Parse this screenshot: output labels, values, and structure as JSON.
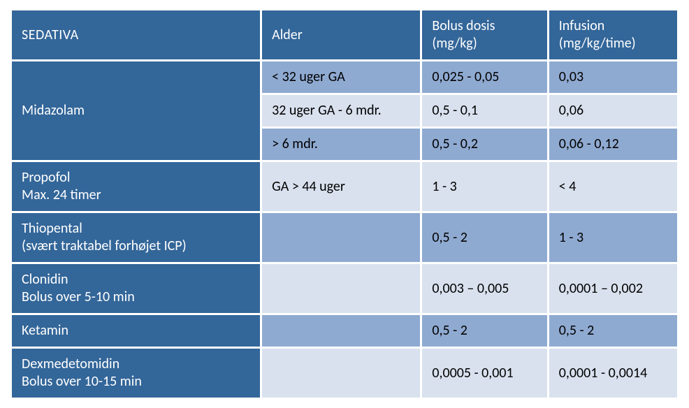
{
  "table": {
    "type": "table",
    "colors": {
      "header_bg": "#336699",
      "header_fg": "#ffffff",
      "drug_bg": "#336699",
      "drug_fg": "#ffffff",
      "row_med": "#8faad1",
      "row_light": "#d9e1ee",
      "border": "#ffffff",
      "cell_fg": "#000000"
    },
    "font_size_pt": 15,
    "col_widths_pct": [
      37.5,
      24,
      19,
      19.5
    ],
    "header": {
      "c1": "SEDATIVA",
      "c2": "Alder",
      "c3": "Bolus dosis\n(mg/kg)",
      "c4": "Infusion\n(mg/kg/time)"
    },
    "rows": [
      {
        "drug": "Midazolam",
        "rowspan": 3,
        "sub": [
          {
            "age": "< 32 uger GA",
            "bolus": "0,025 - 0,05",
            "infusion": "0,03",
            "shade": "med"
          },
          {
            "age": "32 uger GA - 6 mdr.",
            "bolus": "0,5 - 0,1",
            "infusion": "0,06",
            "shade": "light"
          },
          {
            "age": "> 6 mdr.",
            "bolus": "0,5 - 0,2",
            "infusion": "0,06 - 0,12",
            "shade": "med"
          }
        ]
      },
      {
        "drug": "Propofol\nMax. 24 timer",
        "sub": [
          {
            "age": "GA > 44 uger",
            "bolus": "1 - 3",
            "infusion": "< 4",
            "shade": "light"
          }
        ]
      },
      {
        "drug": "Thiopental\n(svært traktabel forhøjet ICP)",
        "sub": [
          {
            "age": "",
            "bolus": "0,5 - 2",
            "infusion": "1 - 3",
            "shade": "med"
          }
        ]
      },
      {
        "drug": "Clonidin\nBolus over 5-10 min",
        "sub": [
          {
            "age": "",
            "bolus": "0,003 – 0,005",
            "infusion": "0,0001 – 0,002",
            "shade": "light"
          }
        ]
      },
      {
        "drug": "Ketamin",
        "sub": [
          {
            "age": "",
            "bolus": "0,5 - 2",
            "infusion": "0,5 - 2",
            "shade": "med"
          }
        ]
      },
      {
        "drug": "Dexmedetomidin\nBolus over 10-15 min",
        "sub": [
          {
            "age": "",
            "bolus": "0,0005 - 0,001",
            "infusion": "0,0001 - 0,0014",
            "shade": "light"
          }
        ]
      }
    ]
  }
}
